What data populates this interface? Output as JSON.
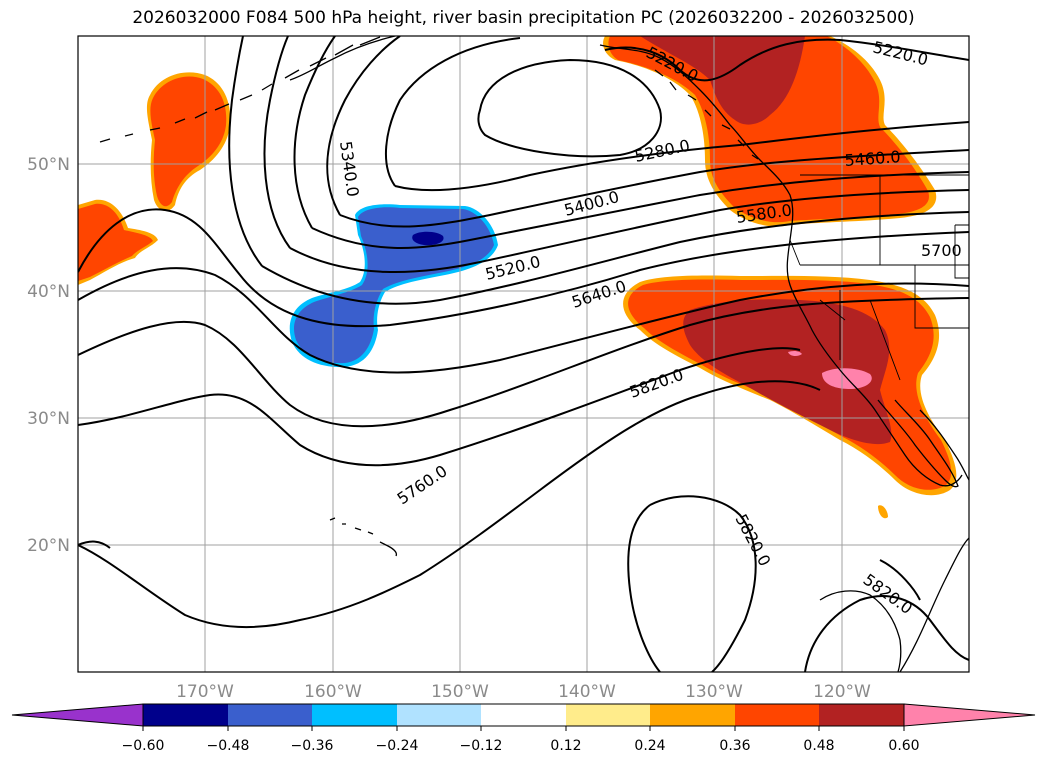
{
  "title": "2026032000 F084 500 hPa height, river basin precipitation PC (2026032200 - 2026032500)",
  "latitude_labels": [
    "50°N",
    "40°N",
    "30°N",
    "20°N"
  ],
  "longitude_labels": [
    "170°W",
    "160°W",
    "150°W",
    "140°W",
    "130°W",
    "120°W"
  ],
  "contour_labels": [
    "5340.0",
    "5220.0",
    "5220.0",
    "5280.0",
    "5400.0",
    "5460.0",
    "5520.0",
    "5580.0",
    "5640.0",
    "5700",
    "5820.0",
    "5760.0",
    "5820.0",
    "5820.0"
  ],
  "colorbar": {
    "ticks": [
      "−0.60",
      "−0.48",
      "−0.36",
      "−0.24",
      "−0.12",
      "0.12",
      "0.24",
      "0.36",
      "0.48",
      "0.60"
    ],
    "colors": [
      "#9932cc",
      "#00008b",
      "#3a5fcd",
      "#00bfff",
      "#b0e2ff",
      "#ffffff",
      "#ffec8b",
      "#ffa500",
      "#ff4500",
      "#b22222",
      "#ff82ab"
    ]
  },
  "colors": {
    "contour": "#000000",
    "grid": "#a0a0a0",
    "coast": "#000000"
  }
}
